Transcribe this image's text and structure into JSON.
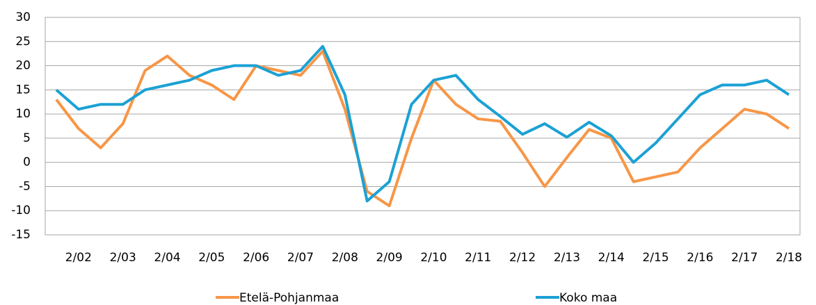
{
  "chart_data": {
    "type": "line",
    "categories": [
      null,
      "2/02",
      null,
      "2/03",
      null,
      "2/04",
      null,
      "2/05",
      null,
      "2/06",
      null,
      "2/07",
      null,
      "2/08",
      null,
      "2/09",
      null,
      "2/10",
      null,
      "2/11",
      null,
      "2/12",
      null,
      "2/13",
      null,
      "2/14",
      null,
      "2/15",
      null,
      "2/16",
      null,
      "2/17",
      null,
      "2/18"
    ],
    "series": [
      {
        "name": "Etelä-Pohjanmaa",
        "color": "#f79646",
        "values": [
          13,
          7,
          3,
          8,
          19,
          22,
          18,
          16,
          13,
          20,
          19,
          18,
          23,
          11,
          -6,
          -9,
          5,
          17,
          12,
          9,
          8.5,
          2,
          -5,
          1,
          6.8,
          5,
          -4,
          -3,
          -2,
          3,
          7,
          11,
          10,
          7
        ]
      },
      {
        "name": "Koko maa",
        "color": "#1ba1d4",
        "values": [
          15,
          11,
          12,
          12,
          15,
          16,
          17,
          19,
          20,
          20,
          18,
          19,
          24,
          14,
          -8,
          -4,
          12,
          17,
          18,
          13,
          9.5,
          5.8,
          8,
          5.2,
          8.3,
          5.5,
          0,
          4,
          9,
          14,
          16,
          16,
          17,
          14
        ]
      }
    ],
    "ylim": [
      -15,
      30
    ],
    "yticks": [
      -15,
      -10,
      -5,
      0,
      5,
      10,
      15,
      20,
      25,
      30
    ],
    "grid": true,
    "legend": "bottom"
  }
}
